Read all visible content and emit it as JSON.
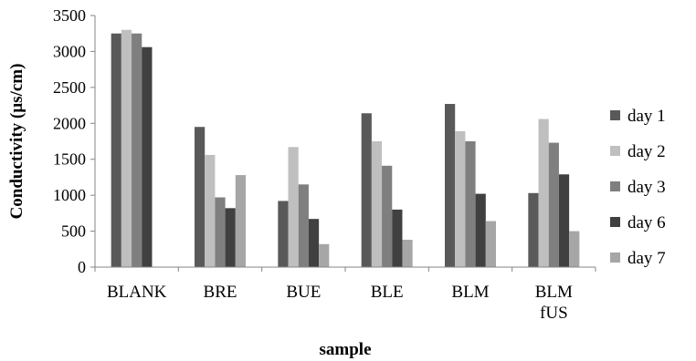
{
  "chart_data": {
    "type": "bar",
    "xlabel": "sample",
    "ylabel": "Conductivity (µs/cm)",
    "ylim": [
      0,
      3500
    ],
    "yticks": [
      0,
      500,
      1000,
      1500,
      2000,
      2500,
      3000,
      3500
    ],
    "grid": false,
    "legend_position": "right",
    "categories": [
      [
        "BLANK"
      ],
      [
        "BRE"
      ],
      [
        "BUE"
      ],
      [
        "BLE"
      ],
      [
        "BLM"
      ],
      [
        "BLM",
        "fUS"
      ]
    ],
    "series": [
      {
        "name": "day 1",
        "color": "#595959",
        "values": [
          3250,
          1950,
          920,
          2140,
          2270,
          1030
        ]
      },
      {
        "name": "day 2",
        "color": "#bfbfbf",
        "values": [
          3300,
          1560,
          1670,
          1750,
          1890,
          2060
        ]
      },
      {
        "name": "day 3",
        "color": "#7f7f7f",
        "values": [
          3250,
          970,
          1150,
          1410,
          1750,
          1730
        ]
      },
      {
        "name": "day 6",
        "color": "#404040",
        "values": [
          3060,
          820,
          670,
          800,
          1020,
          1290
        ]
      },
      {
        "name": "day 7",
        "color": "#a6a6a6",
        "values": [
          null,
          1280,
          320,
          380,
          640,
          500
        ]
      }
    ]
  }
}
